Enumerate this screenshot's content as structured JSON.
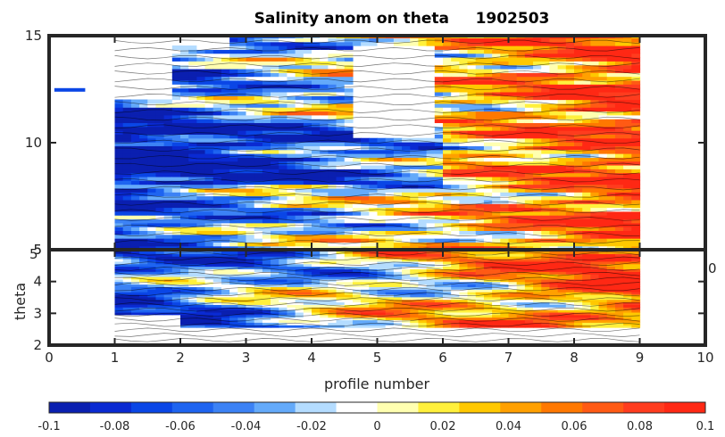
{
  "chart_data": {
    "type": "heatmap",
    "title": "Salinity anom on theta     1902503",
    "upper_panel": {
      "ylim": [
        5,
        15
      ],
      "yticks": [
        "15",
        "10",
        "5"
      ],
      "xlim": [
        0,
        10
      ]
    },
    "lower_panel": {
      "ylim": [
        2,
        5
      ],
      "yticks": [
        "5",
        "4",
        "3",
        "2"
      ],
      "xlim": [
        0,
        10
      ],
      "xticks": [
        "0",
        "1",
        "2",
        "3",
        "4",
        "5",
        "6",
        "7",
        "8",
        "9",
        "10"
      ],
      "xlabel": "profile number",
      "ylabel": "theta",
      "stray_labels": [
        "5",
        "0"
      ]
    },
    "profiles": [
      1,
      2,
      3,
      4,
      5,
      6,
      7,
      8,
      9
    ],
    "colorbar": {
      "min": -0.1,
      "max": 0.1,
      "ticks": [
        "-0.1",
        "-0.08",
        "-0.06",
        "-0.04",
        "-0.02",
        "0",
        "0.02",
        "0.04",
        "0.06",
        "0.08",
        "0.1"
      ],
      "colors": [
        "#0a1fb0",
        "#0a2ad2",
        "#0a46e6",
        "#1e64f0",
        "#3c82f5",
        "#64aafa",
        "#b4dcff",
        "#ffffff",
        "#ffffb0",
        "#fff03c",
        "#ffc800",
        "#ffa000",
        "#ff7800",
        "#ff5a14",
        "#ff3c1e",
        "#ff2814"
      ]
    },
    "grid": false,
    "colors": {
      "axis": "#262626",
      "background": "#ffffff"
    }
  }
}
